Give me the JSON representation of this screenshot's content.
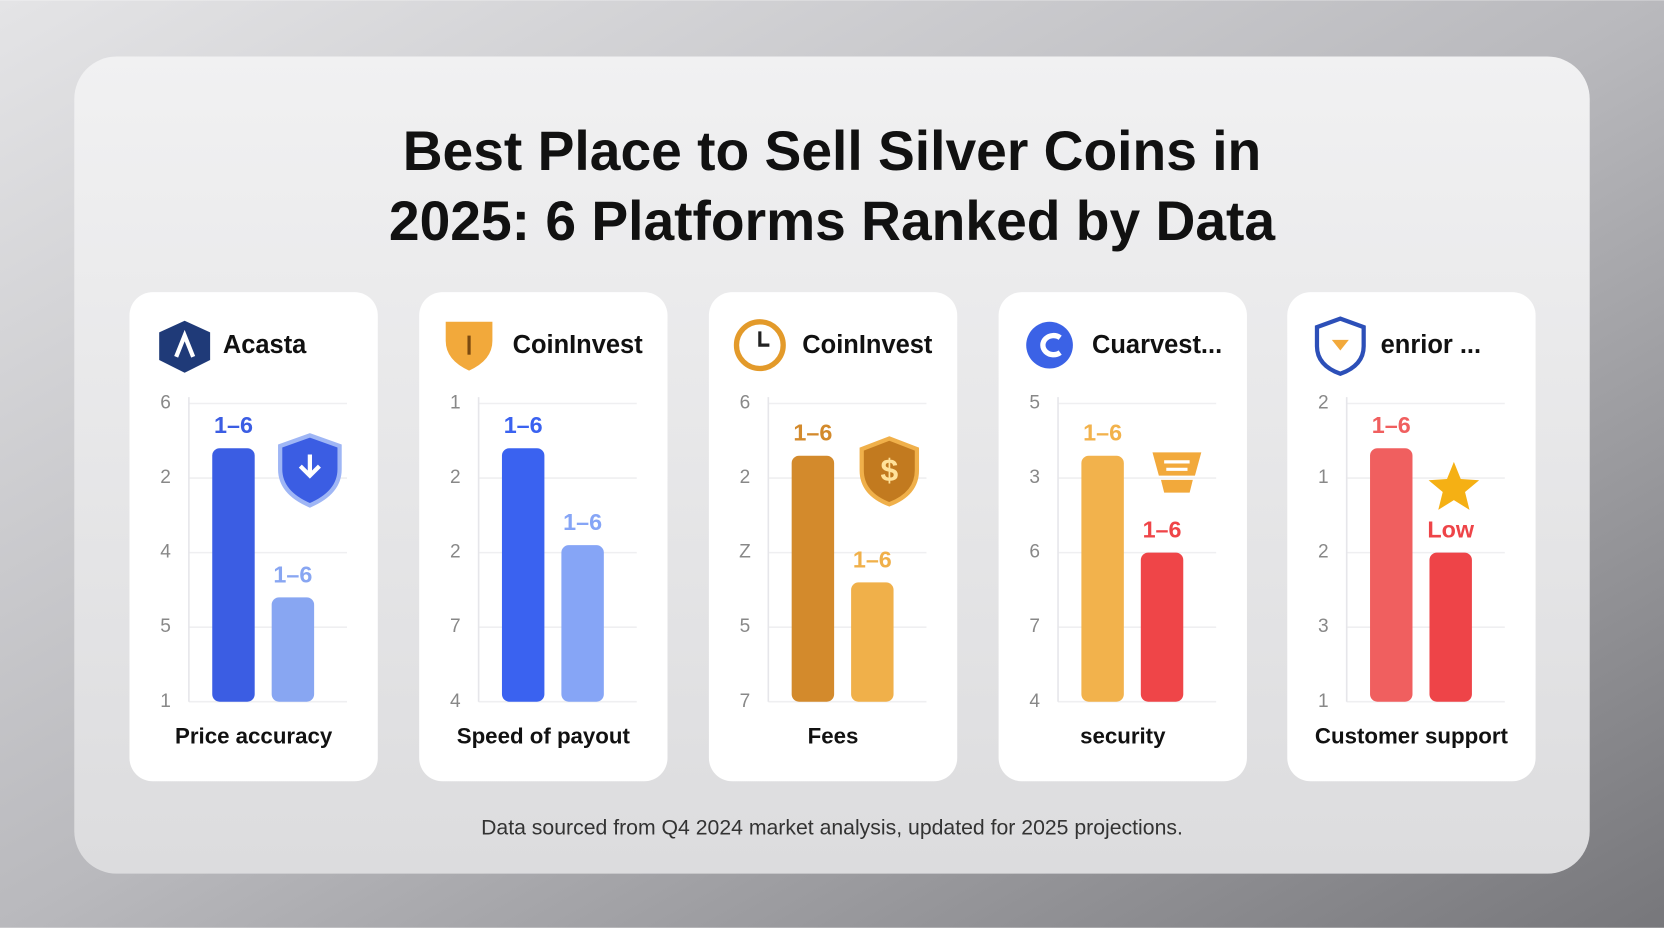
{
  "title_lines": [
    "Best Place to Sell Silver Coins in",
    "2025: 6 Platforms Ranked by Data"
  ],
  "footnote": "Data sourced from Q4 2024 market analysis, updated for 2025 projections.",
  "badge_text": "$",
  "chart_data": [
    {
      "type": "bar",
      "title": "Acasta",
      "x_label": "Price accuracy",
      "categories": [
        null,
        null
      ],
      "values": [
        3.4,
        1.4
      ],
      "annotations": [
        "1–6",
        "1–6"
      ],
      "colors": [
        "#3b5de3",
        "#88a6f2"
      ],
      "ylim": [
        0,
        4
      ],
      "yticks": [
        {
          "value": 0,
          "label": "1"
        },
        {
          "value": 1,
          "label": "5"
        },
        {
          "value": 2,
          "label": "4"
        },
        {
          "value": 3,
          "label": "2"
        },
        {
          "value": 4,
          "label": "6"
        }
      ]
    },
    {
      "type": "bar",
      "title": "CoinInvest",
      "x_label": "Speed of payout",
      "categories": [
        null,
        null
      ],
      "values": [
        3.4,
        2.1
      ],
      "annotations": [
        "1–6",
        "1–6"
      ],
      "colors": [
        "#3a62f0",
        "#86a5f6"
      ],
      "ylim": [
        0,
        4
      ],
      "yticks": [
        {
          "value": 0,
          "label": "4"
        },
        {
          "value": 1,
          "label": "7"
        },
        {
          "value": 2,
          "label": "2"
        },
        {
          "value": 3,
          "label": "2"
        },
        {
          "value": 4,
          "label": "1"
        }
      ]
    },
    {
      "type": "bar",
      "title": "CoinInvest",
      "x_label": "Fees",
      "categories": [
        null,
        null
      ],
      "values": [
        3.3,
        1.6
      ],
      "annotations": [
        "1–6",
        "1–6"
      ],
      "colors": [
        "#d38a2c",
        "#f0b04a"
      ],
      "ylim": [
        0,
        4
      ],
      "yticks": [
        {
          "value": 0,
          "label": "7"
        },
        {
          "value": 1,
          "label": "5"
        },
        {
          "value": 2,
          "label": "Z"
        },
        {
          "value": 3,
          "label": "2"
        },
        {
          "value": 4,
          "label": "6"
        }
      ]
    },
    {
      "type": "bar",
      "title": "Cuarvest...",
      "x_label": "security",
      "categories": [
        null,
        null
      ],
      "values": [
        3.3,
        2.0
      ],
      "annotations": [
        "1–6",
        "1–6"
      ],
      "colors": [
        "#f2b24c",
        "#ef4548"
      ],
      "ylim": [
        0,
        4
      ],
      "yticks": [
        {
          "value": 0,
          "label": "4"
        },
        {
          "value": 1,
          "label": "7"
        },
        {
          "value": 2,
          "label": "6"
        },
        {
          "value": 3,
          "label": "3"
        },
        {
          "value": 4,
          "label": "5"
        }
      ]
    },
    {
      "type": "bar",
      "title": "enrior ...",
      "x_label": "Customer support",
      "categories": [
        null,
        null
      ],
      "values": [
        3.4,
        2.0
      ],
      "annotations": [
        "1–6",
        "Low"
      ],
      "colors": [
        "#f05f5f",
        "#ee4448"
      ],
      "ylim": [
        0,
        4
      ],
      "yticks": [
        {
          "value": 0,
          "label": "1"
        },
        {
          "value": 1,
          "label": "3"
        },
        {
          "value": 2,
          "label": "2"
        },
        {
          "value": 3,
          "label": "1"
        },
        {
          "value": 4,
          "label": "2"
        }
      ]
    }
  ]
}
